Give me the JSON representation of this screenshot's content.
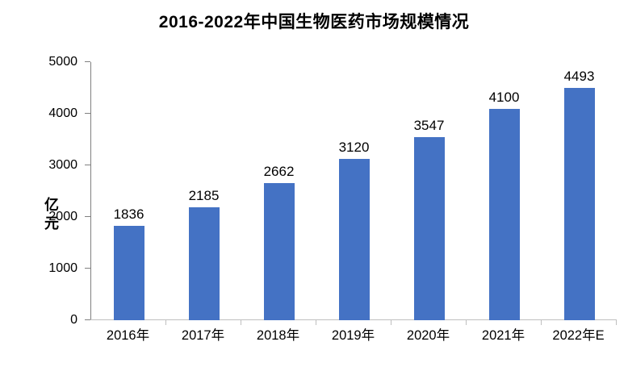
{
  "chart_data": {
    "type": "bar",
    "title": "2016-2022年中国生物医药市场规模情况",
    "ylabel": "亿元",
    "xlabel": "",
    "categories": [
      "2016年",
      "2017年",
      "2018年",
      "2019年",
      "2020年",
      "2021年",
      "2022年E"
    ],
    "values": [
      1836,
      2185,
      2662,
      3120,
      3547,
      4100,
      4493
    ],
    "ylim": [
      0,
      5000
    ],
    "ytick_interval": 1000,
    "grid": false,
    "legend_position": "none",
    "bar_color": "#4472C4"
  },
  "colors": {
    "bar": "#4472C4",
    "y_axis_line": "#808080",
    "x_axis_line": "#bfbfbf",
    "text": "#000000",
    "background": "#ffffff"
  }
}
